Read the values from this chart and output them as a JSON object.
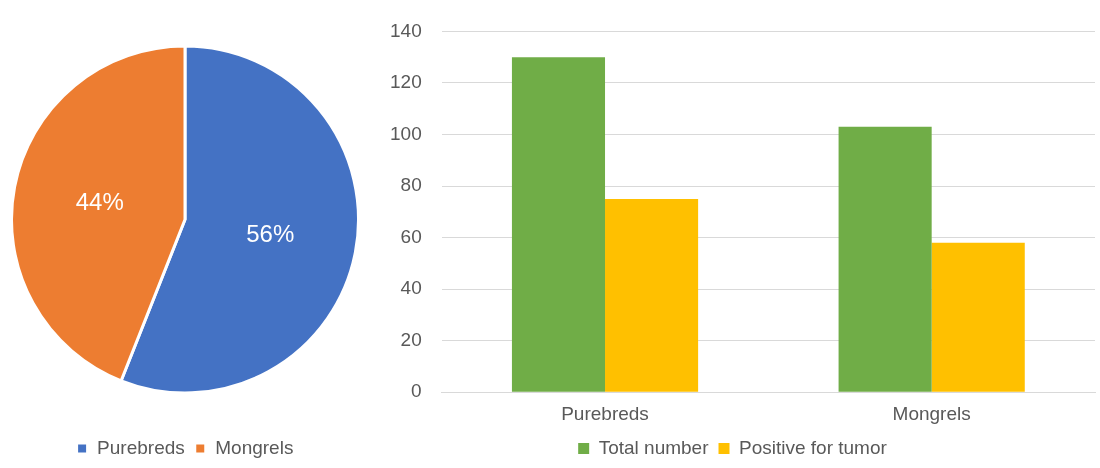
{
  "chart_data": [
    {
      "type": "pie",
      "categories": [
        "Purebreds",
        "Mongrels"
      ],
      "values": [
        56,
        44
      ],
      "colors": [
        "#4472c4",
        "#ed7d31"
      ],
      "value_labels": [
        "56%",
        "44%"
      ],
      "legend": "bottom"
    },
    {
      "type": "bar",
      "categories": [
        "Purebreds",
        "Mongrels"
      ],
      "series": [
        {
          "name": "Total number",
          "color": "#70ad47",
          "values": [
            130,
            103
          ]
        },
        {
          "name": "Positive for tumor",
          "color": "#ffc000",
          "values": [
            75,
            58
          ]
        }
      ],
      "ylim": [
        0,
        140
      ],
      "yticks": [
        0,
        20,
        40,
        60,
        80,
        100,
        120,
        140
      ],
      "grid": "y",
      "legend": "bottom"
    }
  ]
}
